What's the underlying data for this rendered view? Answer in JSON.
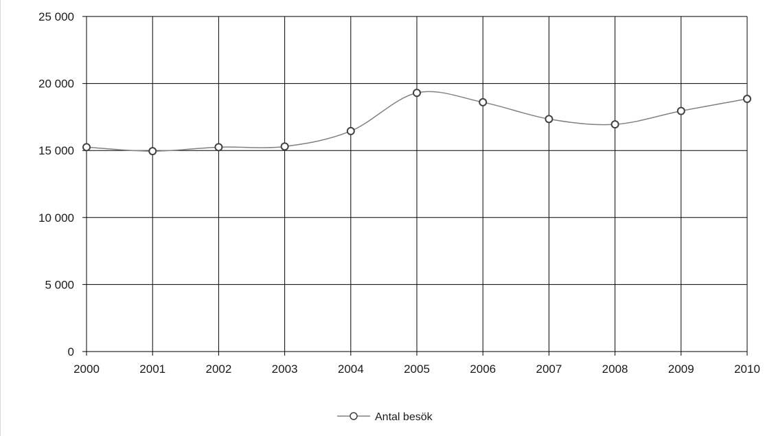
{
  "chart_data": {
    "type": "line",
    "title": "",
    "xlabel": "",
    "ylabel": "",
    "x": [
      "2000",
      "2001",
      "2002",
      "2003",
      "2004",
      "2005",
      "2006",
      "2007",
      "2008",
      "2009",
      "2010"
    ],
    "series": [
      {
        "name": "Antal besök",
        "values": [
          15250,
          14950,
          15250,
          15300,
          16450,
          19300,
          18600,
          17350,
          16950,
          17950,
          18850
        ]
      }
    ],
    "ylim": [
      0,
      25000
    ],
    "y_ticks": [
      0,
      5000,
      10000,
      15000,
      20000,
      25000
    ],
    "y_tick_labels": [
      "0",
      "5 000",
      "10 000",
      "15 000",
      "20 000",
      "25 000"
    ],
    "grid": true,
    "smooth": true,
    "legend_position": "bottom-center",
    "colors": {
      "line": "#808080",
      "marker_fill": "#ffffff",
      "marker_stroke": "#404040",
      "grid": "#000000"
    }
  }
}
